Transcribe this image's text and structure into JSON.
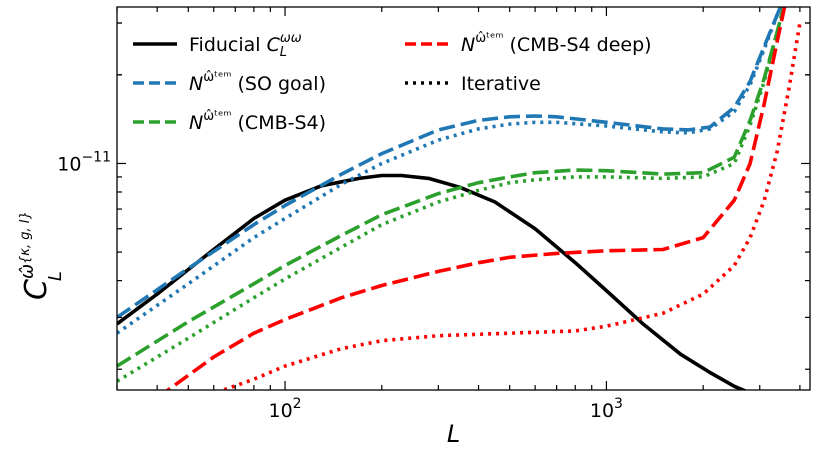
{
  "chart_data": {
    "type": "line",
    "xscale": "log",
    "yscale": "log",
    "xlim": [
      30,
      4300
    ],
    "ylim": [
      1.7e-12,
      3.4e-11
    ],
    "xlabel": "L",
    "ylabel": "C_L^{ω̂{κ,g,I}}",
    "x_ticks": [
      {
        "value": 100,
        "base": "10",
        "exp": "2"
      },
      {
        "value": 1000,
        "base": "10",
        "exp": "3"
      }
    ],
    "y_ticks": [
      {
        "value": 1e-11,
        "base": "10",
        "exp": "−11"
      }
    ],
    "legend": {
      "placement": "top",
      "entries": [
        {
          "id": "fiducial",
          "sym": "Fiducial ",
          "cl": "C",
          "sub": "L",
          "sup": "ωω",
          "rest": ""
        },
        {
          "id": "so",
          "sym": "N",
          "sup": "ω̂ᵗᵉᵐ",
          "rest": " (SO goal)"
        },
        {
          "id": "s4",
          "sym": "N",
          "sup": "ω̂ᵗᵉᵐ",
          "rest": " (CMB-S4)"
        },
        {
          "id": "s4deep",
          "sym": "N",
          "sup": "ω̂ᵗᵉᵐ",
          "rest": " (CMB-S4 deep)"
        },
        {
          "id": "iter",
          "sym": "",
          "sup": "",
          "rest": "Iterative"
        }
      ]
    },
    "series": [
      {
        "name": "Fiducial C_L^ωω",
        "color": "#000000",
        "dash": "solid",
        "x": [
          30,
          40,
          60,
          80,
          100,
          130,
          170,
          200,
          230,
          280,
          350,
          450,
          600,
          800,
          1000,
          1300,
          1700,
          2100,
          2500,
          2800
        ],
        "y": [
          2.85e-12,
          3.6e-12,
          5.1e-12,
          6.5e-12,
          7.5e-12,
          8.4e-12,
          8.9e-12,
          9.1e-12,
          9.1e-12,
          8.9e-12,
          8.3e-12,
          7.4e-12,
          6e-12,
          4.6e-12,
          3.7e-12,
          2.85e-12,
          2.25e-12,
          1.95e-12,
          1.75e-12,
          1.66e-12
        ]
      },
      {
        "name": "N (SO goal)",
        "color": "#1f77b4",
        "dash": "dashed",
        "x": [
          30,
          50,
          80,
          100,
          150,
          200,
          300,
          400,
          500,
          600,
          700,
          1000,
          1500,
          1800,
          2100,
          2500,
          2800,
          3100,
          3400,
          3700
        ],
        "y": [
          3e-12,
          4.4e-12,
          6.2e-12,
          7.2e-12,
          9.2e-12,
          1.08e-11,
          1.3e-11,
          1.4e-11,
          1.44e-11,
          1.45e-11,
          1.44e-11,
          1.38e-11,
          1.31e-11,
          1.3e-11,
          1.33e-11,
          1.55e-11,
          1.9e-11,
          2.5e-11,
          3.2e-11,
          4e-11
        ]
      },
      {
        "name": "Iterative (SO goal)",
        "color": "#1f77b4",
        "dash": "dotted",
        "x": [
          30,
          50,
          80,
          100,
          150,
          200,
          300,
          400,
          500,
          600,
          700,
          1000,
          1500,
          1800,
          2100,
          2500,
          2800,
          3100,
          3400,
          3700
        ],
        "y": [
          2.65e-12,
          3.9e-12,
          5.6e-12,
          6.5e-12,
          8.5e-12,
          1e-11,
          1.2e-11,
          1.31e-11,
          1.36e-11,
          1.38e-11,
          1.38e-11,
          1.34e-11,
          1.28e-11,
          1.27e-11,
          1.31e-11,
          1.5e-11,
          1.85e-11,
          2.45e-11,
          3.2e-11,
          4e-11
        ]
      },
      {
        "name": "N (CMB-S4)",
        "color": "#2ca02c",
        "dash": "dashed",
        "x": [
          30,
          50,
          80,
          100,
          150,
          200,
          300,
          400,
          500,
          600,
          800,
          1000,
          1500,
          2000,
          2500,
          2800,
          3100,
          3400,
          3700
        ],
        "y": [
          2.05e-12,
          2.9e-12,
          3.9e-12,
          4.5e-12,
          5.7e-12,
          6.7e-12,
          7.9e-12,
          8.6e-12,
          9e-12,
          9.3e-12,
          9.5e-12,
          9.45e-12,
          9.2e-12,
          9.3e-12,
          1.05e-11,
          1.4e-11,
          1.95e-11,
          2.8e-11,
          4e-11
        ]
      },
      {
        "name": "Iterative (CMB-S4)",
        "color": "#2ca02c",
        "dash": "dotted",
        "x": [
          30,
          50,
          80,
          100,
          150,
          200,
          300,
          400,
          500,
          600,
          800,
          1000,
          1500,
          2000,
          2500,
          2800,
          3100,
          3400,
          3700
        ],
        "y": [
          1.82e-12,
          2.55e-12,
          3.5e-12,
          4.05e-12,
          5.2e-12,
          6.2e-12,
          7.4e-12,
          8.1e-12,
          8.6e-12,
          8.8e-12,
          9e-12,
          9e-12,
          8.9e-12,
          9e-12,
          1e-11,
          1.35e-11,
          1.9e-11,
          2.8e-11,
          4e-11
        ]
      },
      {
        "name": "N (CMB-S4 deep)",
        "color": "#ff0000",
        "dash": "dashed",
        "x": [
          40,
          60,
          80,
          100,
          150,
          200,
          300,
          400,
          500,
          700,
          1000,
          1500,
          2000,
          2500,
          2800,
          3100,
          3400,
          3700
        ],
        "y": [
          1.6e-12,
          2.2e-12,
          2.65e-12,
          2.95e-12,
          3.5e-12,
          3.85e-12,
          4.3e-12,
          4.6e-12,
          4.8e-12,
          4.95e-12,
          5.05e-12,
          5.1e-12,
          5.6e-12,
          7.5e-12,
          1e-11,
          1.6e-11,
          2.6e-11,
          4e-11
        ]
      },
      {
        "name": "Iterative (CMB-S4 deep)",
        "color": "#ff0000",
        "dash": "dotted",
        "x": [
          55,
          80,
          100,
          150,
          200,
          300,
          500,
          800,
          1000,
          1500,
          2000,
          2500,
          2800,
          3100,
          3400,
          3700,
          4000
        ],
        "y": [
          1.6e-12,
          1.85e-12,
          2.05e-12,
          2.35e-12,
          2.5e-12,
          2.6e-12,
          2.65e-12,
          2.7e-12,
          2.8e-12,
          3.1e-12,
          3.6e-12,
          4.5e-12,
          5.6e-12,
          7.5e-12,
          1.1e-11,
          1.8e-11,
          3e-11
        ]
      }
    ]
  }
}
